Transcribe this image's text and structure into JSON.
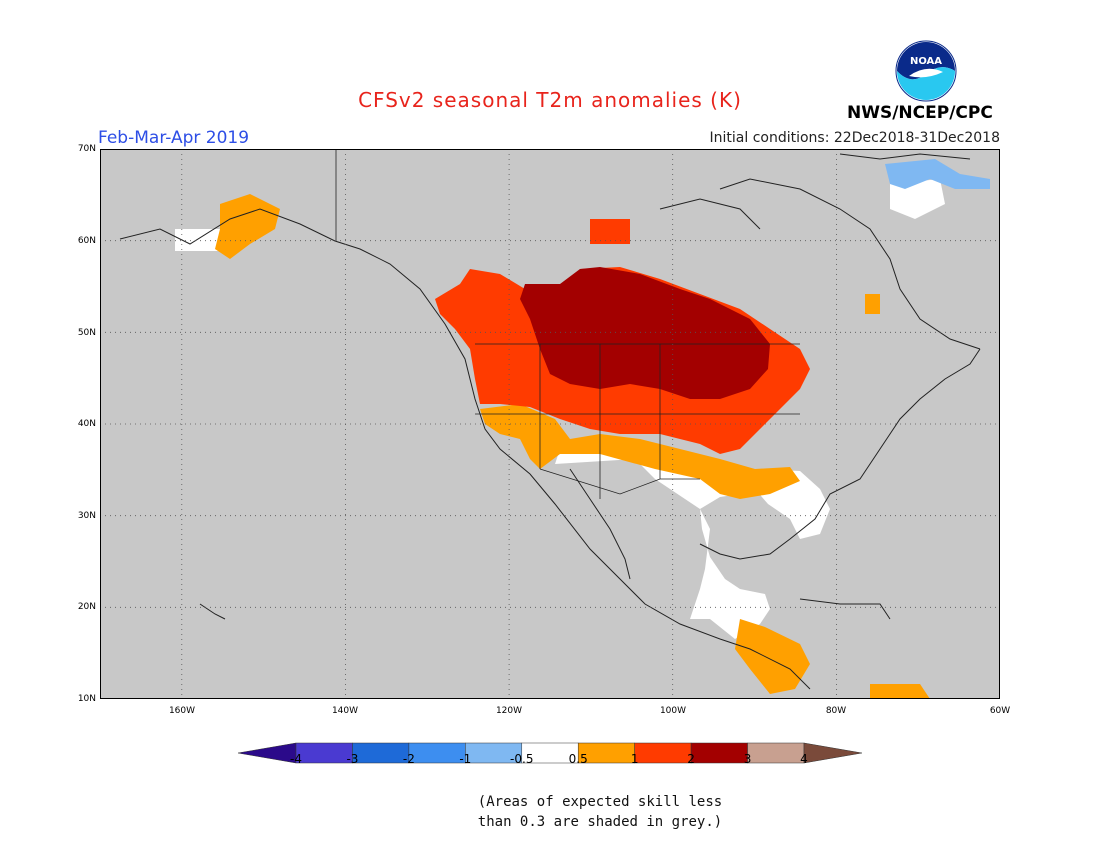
{
  "header": {
    "title": "CFSv2 seasonal T2m anomalies (K)",
    "period": "Feb-Mar-Apr 2019",
    "initial_conditions": "Initial conditions: 22Dec2018-31Dec2018",
    "organization": "NWS/NCEP/CPC",
    "logo_text": "NOAA"
  },
  "axes": {
    "lat_labels": [
      "70N",
      "60N",
      "50N",
      "40N",
      "30N",
      "20N",
      "10N"
    ],
    "lon_labels": [
      "160W",
      "140W",
      "120W",
      "100W",
      "80W",
      "60W"
    ]
  },
  "colorbar": {
    "labels": [
      "-4",
      "-3",
      "-2",
      "-1",
      "-0.5",
      "0.5",
      "1",
      "2",
      "3",
      "4"
    ],
    "colors": [
      "#2b0a8a",
      "#4a3ad1",
      "#1e6ad8",
      "#3d8ef0",
      "#7fb8f2",
      "#ffffff",
      "#ffa000",
      "#ff3b00",
      "#a30000",
      "#c8a090",
      "#7a4a3a"
    ]
  },
  "note": {
    "line1": "(Areas of expected skill less",
    "line2": "than 0.3 are shaded in grey.)"
  },
  "colors": {
    "skill_grey": "#c8c8c8",
    "warm_05_1": "#ffa000",
    "warm_1_2": "#ff3b00",
    "warm_2_3": "#a30000",
    "cool_minus1": "#7fb8f2",
    "neutral": "#ffffff"
  }
}
